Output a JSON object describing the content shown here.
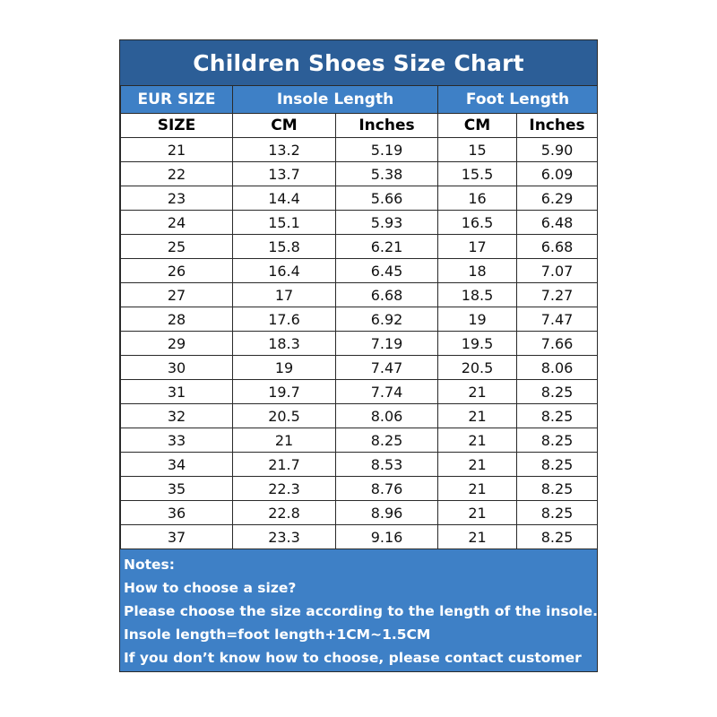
{
  "title": "Children Shoes Size Chart",
  "header": {
    "groups": [
      "EUR SIZE",
      "Insole Length",
      "Foot Length"
    ],
    "units": [
      "SIZE",
      "CM",
      "Inches",
      "CM",
      "Inches"
    ]
  },
  "rows": [
    [
      "21",
      "13.2",
      "5.19",
      "15",
      "5.90"
    ],
    [
      "22",
      "13.7",
      "5.38",
      "15.5",
      "6.09"
    ],
    [
      "23",
      "14.4",
      "5.66",
      "16",
      "6.29"
    ],
    [
      "24",
      "15.1",
      "5.93",
      "16.5",
      "6.48"
    ],
    [
      "25",
      "15.8",
      "6.21",
      "17",
      "6.68"
    ],
    [
      "26",
      "16.4",
      "6.45",
      "18",
      "7.07"
    ],
    [
      "27",
      "17",
      "6.68",
      "18.5",
      "7.27"
    ],
    [
      "28",
      "17.6",
      "6.92",
      "19",
      "7.47"
    ],
    [
      "29",
      "18.3",
      "7.19",
      "19.5",
      "7.66"
    ],
    [
      "30",
      "19",
      "7.47",
      "20.5",
      "8.06"
    ],
    [
      "31",
      "19.7",
      "7.74",
      "21",
      "8.25"
    ],
    [
      "32",
      "20.5",
      "8.06",
      "21",
      "8.25"
    ],
    [
      "33",
      "21",
      "8.25",
      "21",
      "8.25"
    ],
    [
      "34",
      "21.7",
      "8.53",
      "21",
      "8.25"
    ],
    [
      "35",
      "22.3",
      "8.76",
      "21",
      "8.25"
    ],
    [
      "36",
      "22.8",
      "8.96",
      "21",
      "8.25"
    ],
    [
      "37",
      "23.3",
      "9.16",
      "21",
      "8.25"
    ]
  ],
  "notes": [
    "Notes:",
    "How to choose a size?",
    "Please choose the size according to the length of the insole.",
    "Insole length=foot length+1CM~1.5CM",
    "If you don’t know how to choose, please contact customer"
  ],
  "colors": {
    "title_band": "#2c5e97",
    "header_band": "#3e80c6",
    "notes_band": "#3e80c6"
  }
}
